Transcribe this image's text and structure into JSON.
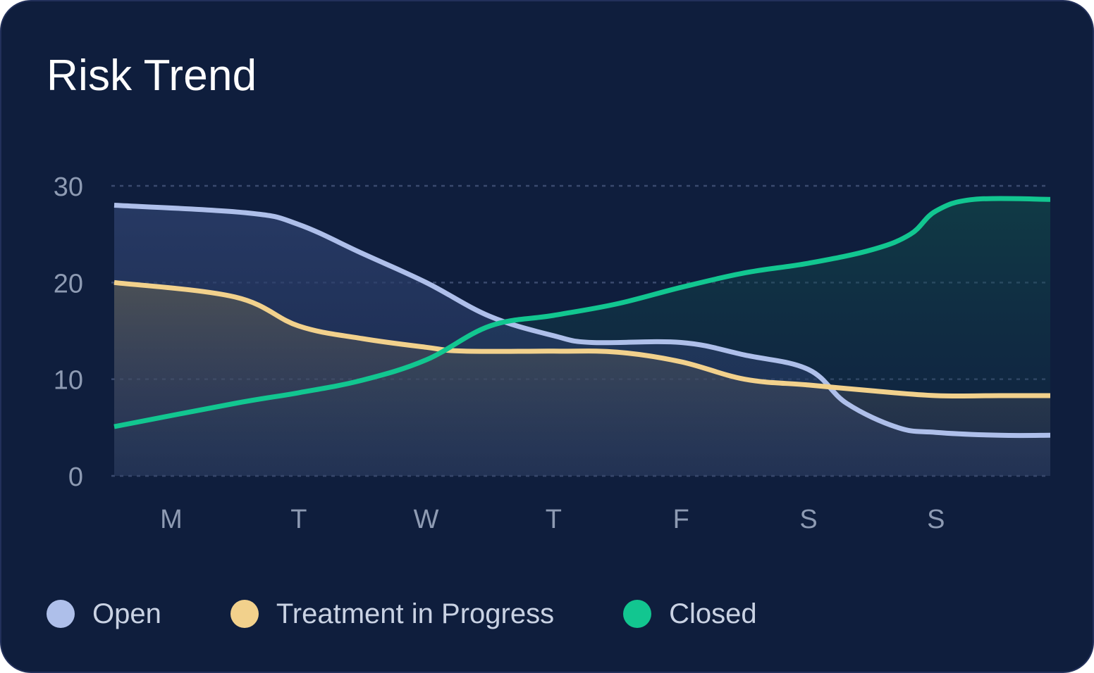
{
  "chart_data": {
    "type": "line",
    "title": "Risk Trend",
    "xlabel": "",
    "ylabel": "",
    "categories": [
      "M",
      "T",
      "W",
      "T",
      "F",
      "S",
      "S"
    ],
    "ylim": [
      0,
      30
    ],
    "yticks": [
      0,
      10,
      20,
      30
    ],
    "grid": true,
    "legend_position": "bottom-left",
    "series": [
      {
        "name": "Open",
        "color": "#aebfea",
        "fill": true,
        "x": [
          -0.5,
          0.6,
          1.0,
          1.5,
          2.0,
          2.5,
          3.0,
          3.3,
          4.0,
          4.5,
          5.0,
          5.3,
          5.7,
          6.0,
          6.5,
          6.9
        ],
        "y": [
          28,
          27.2,
          26,
          23,
          20,
          16.5,
          14.5,
          13.8,
          13.8,
          12.5,
          11,
          7.5,
          5,
          4.5,
          4.2,
          4.2
        ]
      },
      {
        "name": "Treatment in Progress",
        "color": "#f2d18c",
        "fill": true,
        "x": [
          -0.5,
          0.5,
          1.0,
          1.5,
          2.0,
          2.3,
          3.0,
          3.5,
          4.0,
          4.5,
          5.0,
          5.5,
          6.0,
          6.5,
          6.9
        ],
        "y": [
          20,
          18.5,
          15.5,
          14.2,
          13.3,
          12.9,
          12.9,
          12.8,
          11.8,
          10,
          9.4,
          8.8,
          8.3,
          8.3,
          8.3
        ]
      },
      {
        "name": "Closed",
        "color": "#12c690",
        "fill": true,
        "x": [
          -0.5,
          0.5,
          1.0,
          1.5,
          2.0,
          2.5,
          3.0,
          3.5,
          4.0,
          4.5,
          5.0,
          5.5,
          5.8,
          6.0,
          6.3,
          6.9
        ],
        "y": [
          5.1,
          7.5,
          8.6,
          9.9,
          12,
          15.5,
          16.6,
          17.8,
          19.5,
          21,
          22,
          23.4,
          25,
          27.4,
          28.6,
          28.6
        ]
      }
    ]
  },
  "legend": [
    {
      "label": "Open",
      "color": "#aebfea"
    },
    {
      "label": "Treatment in Progress",
      "color": "#f2d18c"
    },
    {
      "label": "Closed",
      "color": "#12c690"
    }
  ]
}
